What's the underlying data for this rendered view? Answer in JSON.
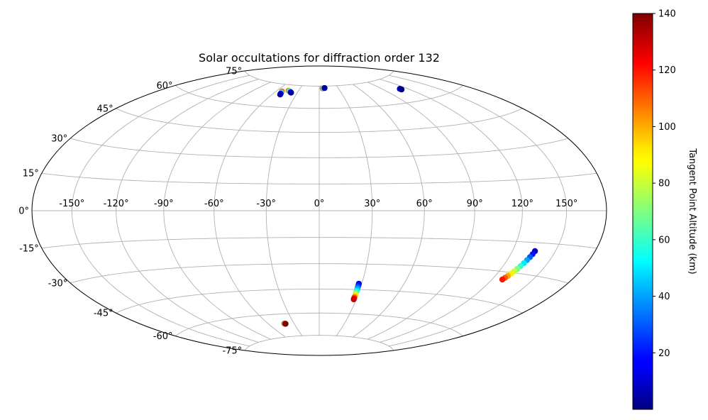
{
  "chart_data": {
    "type": "scatter",
    "projection": "hammer",
    "title": "Solar occultations for diffraction order 132",
    "lon_tick_labels": [
      {
        "value": -150,
        "label": "-150°"
      },
      {
        "value": -120,
        "label": "-120°"
      },
      {
        "value": -90,
        "label": "-90°"
      },
      {
        "value": -60,
        "label": "-60°"
      },
      {
        "value": -30,
        "label": "-30°"
      },
      {
        "value": 0,
        "label": "0°"
      },
      {
        "value": 30,
        "label": "30°"
      },
      {
        "value": 60,
        "label": "60°"
      },
      {
        "value": 90,
        "label": "90°"
      },
      {
        "value": 120,
        "label": "120°"
      },
      {
        "value": 150,
        "label": "150°"
      }
    ],
    "lat_tick_labels": [
      {
        "value": 75,
        "label": "75°"
      },
      {
        "value": 60,
        "label": "60°"
      },
      {
        "value": 45,
        "label": "45°"
      },
      {
        "value": 30,
        "label": "30°"
      },
      {
        "value": 15,
        "label": "15°"
      },
      {
        "value": 0,
        "label": "0°"
      },
      {
        "value": -15,
        "label": "-15°"
      },
      {
        "value": -30,
        "label": "-30°"
      },
      {
        "value": -45,
        "label": "-45°"
      },
      {
        "value": -60,
        "label": "-60°"
      },
      {
        "value": -75,
        "label": "-75°"
      }
    ],
    "grid": true,
    "colorbar": {
      "label": "Tangent Point Altitude (km)",
      "range": [
        0,
        140
      ],
      "tick_labels": [
        {
          "value": 20,
          "label": "20"
        },
        {
          "value": 40,
          "label": "40"
        },
        {
          "value": 60,
          "label": "60"
        },
        {
          "value": 80,
          "label": "80"
        },
        {
          "value": 100,
          "label": "100"
        },
        {
          "value": 120,
          "label": "120"
        },
        {
          "value": 140,
          "label": "140"
        }
      ],
      "colormap": "jet",
      "placement": "right"
    },
    "series": [
      {
        "points": [
          {
            "lon": 135.5,
            "lat": -19.0,
            "alt": 10
          },
          {
            "lon": 135.0,
            "lat": -20.5,
            "alt": 20
          },
          {
            "lon": 134.4,
            "lat": -22.0,
            "alt": 30
          },
          {
            "lon": 133.7,
            "lat": -23.5,
            "alt": 40
          },
          {
            "lon": 133.0,
            "lat": -25.0,
            "alt": 50
          },
          {
            "lon": 132.2,
            "lat": -26.5,
            "alt": 60
          },
          {
            "lon": 131.4,
            "lat": -28.0,
            "alt": 70
          },
          {
            "lon": 130.6,
            "lat": -29.3,
            "alt": 80
          },
          {
            "lon": 129.8,
            "lat": -30.6,
            "alt": 90
          },
          {
            "lon": 129.0,
            "lat": -31.8,
            "alt": 100
          },
          {
            "lon": 128.2,
            "lat": -32.8,
            "alt": 110
          },
          {
            "lon": 127.5,
            "lat": -33.8,
            "alt": 120
          }
        ]
      },
      {
        "points": [
          {
            "lon": 28.0,
            "lat": -41.5,
            "alt": 10
          },
          {
            "lon": 28.0,
            "lat": -42.5,
            "alt": 20
          },
          {
            "lon": 28.0,
            "lat": -43.5,
            "alt": 30
          },
          {
            "lon": 28.0,
            "lat": -44.5,
            "alt": 40
          },
          {
            "lon": 28.0,
            "lat": -45.5,
            "alt": 50
          },
          {
            "lon": 28.0,
            "lat": -46.5,
            "alt": 60
          },
          {
            "lon": 28.0,
            "lat": -47.5,
            "alt": 75
          },
          {
            "lon": 28.0,
            "lat": -48.5,
            "alt": 90
          },
          {
            "lon": 28.0,
            "lat": -49.5,
            "alt": 105
          },
          {
            "lon": 28.0,
            "lat": -50.3,
            "alt": 120
          },
          {
            "lon": 28.0,
            "lat": -51.0,
            "alt": 130
          }
        ]
      },
      {
        "points": [
          {
            "lon": -41.5,
            "lat": -66.2,
            "alt": 45
          },
          {
            "lon": -40.8,
            "lat": -66.3,
            "alt": 110
          },
          {
            "lon": -40.2,
            "lat": -66.4,
            "alt": 140
          }
        ]
      },
      {
        "points": [
          {
            "lon": -52.0,
            "lat": 70.2,
            "alt": 110
          },
          {
            "lon": -51.3,
            "lat": 69.5,
            "alt": 60
          },
          {
            "lon": -50.6,
            "lat": 68.8,
            "alt": 20
          },
          {
            "lon": -50.1,
            "lat": 68.2,
            "alt": 5
          }
        ]
      },
      {
        "points": [
          {
            "lon": -44.0,
            "lat": 71.0,
            "alt": 110
          },
          {
            "lon": -42.3,
            "lat": 70.8,
            "alt": 70
          },
          {
            "lon": -40.6,
            "lat": 70.5,
            "alt": 45
          },
          {
            "lon": -39.3,
            "lat": 70.1,
            "alt": 25
          },
          {
            "lon": -38.3,
            "lat": 69.9,
            "alt": 5
          }
        ]
      },
      {
        "points": [
          {
            "lon": 5.5,
            "lat": 73.4,
            "alt": 110
          },
          {
            "lon": 7.0,
            "lat": 73.5,
            "alt": 60
          },
          {
            "lon": 8.5,
            "lat": 73.6,
            "alt": 5
          }
        ]
      },
      {
        "points": [
          {
            "lon": 111.0,
            "lat": 68.0,
            "alt": 10
          },
          {
            "lon": 111.2,
            "lat": 67.5,
            "alt": 3
          }
        ]
      }
    ]
  }
}
